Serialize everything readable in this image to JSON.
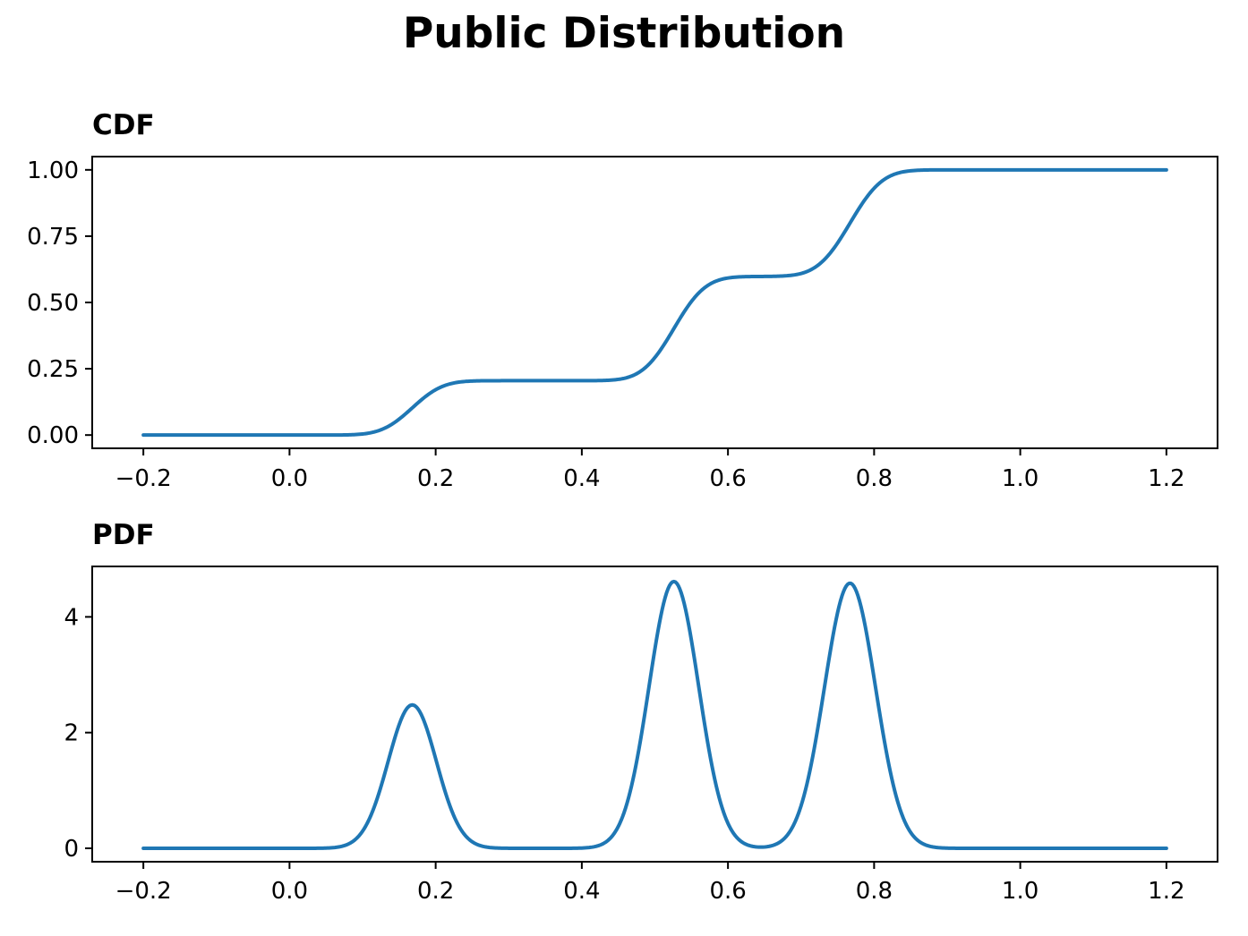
{
  "title": "Public Distribution",
  "line_color": "#1f77b4",
  "axis_color": "#000000",
  "background_color": "#ffffff",
  "mixture": {
    "comment_visible_fit": "three-component gaussian mixture read off the plots",
    "weights": [
      0.205,
      0.393,
      0.402
    ],
    "means": [
      0.168,
      0.526,
      0.767
    ],
    "stds": [
      0.033,
      0.034,
      0.035
    ]
  },
  "chart_data": [
    {
      "type": "line",
      "title": "CDF",
      "title_loc": "left",
      "curve": "gaussian_mixture_cdf",
      "x_range": [
        -0.2,
        1.2
      ],
      "xlim": [
        -0.27,
        1.27
      ],
      "ylim": [
        -0.05,
        1.05
      ],
      "xticks": [
        -0.2,
        0.0,
        0.2,
        0.4,
        0.6,
        0.8,
        1.0,
        1.2
      ],
      "xtick_labels": [
        "−0.2",
        "0.0",
        "0.2",
        "0.4",
        "0.6",
        "0.8",
        "1.0",
        "1.2"
      ],
      "yticks": [
        0.0,
        0.25,
        0.5,
        0.75,
        1.0
      ],
      "ytick_labels": [
        "0.00",
        "0.25",
        "0.50",
        "0.75",
        "1.00"
      ],
      "plateau_levels": [
        0.0,
        0.205,
        0.598,
        1.0
      ],
      "step_centers": [
        0.168,
        0.526,
        0.767
      ],
      "grid": false,
      "legend": null
    },
    {
      "type": "line",
      "title": "PDF",
      "title_loc": "left",
      "curve": "gaussian_mixture_pdf",
      "x_range": [
        -0.2,
        1.2
      ],
      "xlim": [
        -0.27,
        1.27
      ],
      "ylim": [
        -0.232,
        4.872
      ],
      "xticks": [
        -0.2,
        0.0,
        0.2,
        0.4,
        0.6,
        0.8,
        1.0,
        1.2
      ],
      "xtick_labels": [
        "−0.2",
        "0.0",
        "0.2",
        "0.4",
        "0.6",
        "0.8",
        "1.0",
        "1.2"
      ],
      "yticks": [
        0,
        2,
        4
      ],
      "ytick_labels": [
        "0",
        "2",
        "4"
      ],
      "peaks": [
        {
          "x": 0.168,
          "y": 2.48
        },
        {
          "x": 0.526,
          "y": 4.61
        },
        {
          "x": 0.767,
          "y": 4.58
        }
      ],
      "grid": false,
      "legend": null
    }
  ]
}
